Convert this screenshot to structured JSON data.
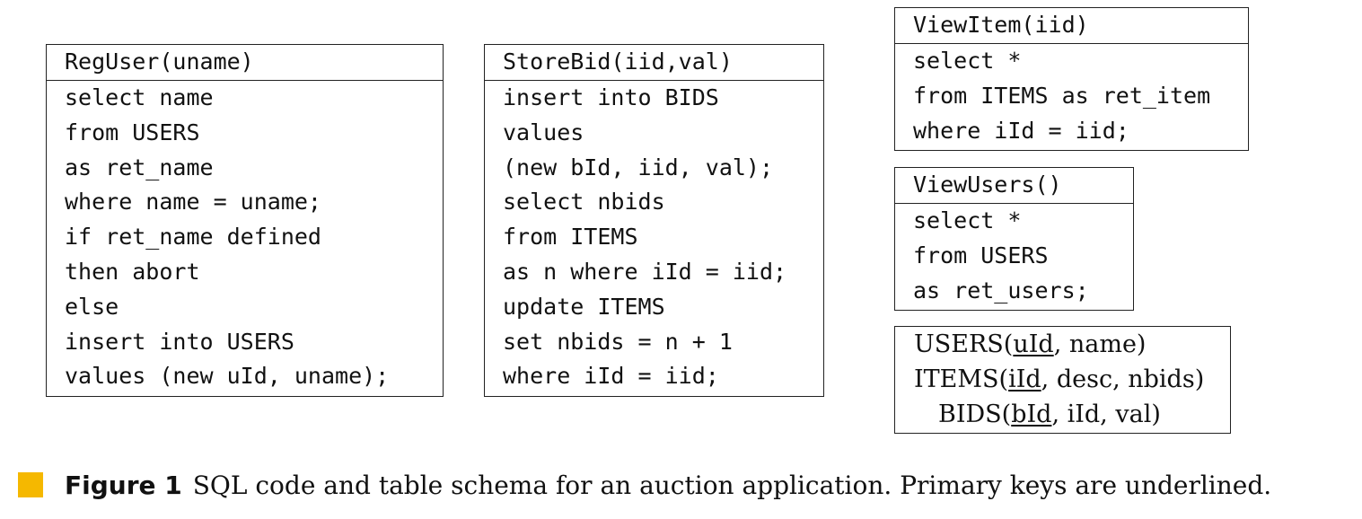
{
  "reg_user": {
    "header": "RegUser(uname)",
    "lines": [
      "select name",
      "from USERS",
      "as ret_name",
      "where name = uname;",
      "if ret_name defined",
      "then abort",
      "else",
      "insert into USERS",
      "values (new uId, uname);"
    ]
  },
  "store_bid": {
    "header": "StoreBid(iid,val)",
    "lines": [
      "insert into BIDS",
      "values",
      "(new bId, iid, val);",
      "select nbids",
      "from ITEMS",
      "as n where iId = iid;",
      "update ITEMS",
      "set nbids = n + 1",
      "where iId = iid;"
    ]
  },
  "view_item": {
    "header": "ViewItem(iid)",
    "lines": [
      "select *",
      "from ITEMS as ret_item",
      "where iId = iid;"
    ]
  },
  "view_users": {
    "header": "ViewUsers()",
    "lines": [
      "select *",
      "from USERS",
      "as ret_users;"
    ]
  },
  "schema": {
    "users": {
      "table": "USERS",
      "key": "uId",
      "rest": ", name)"
    },
    "items": {
      "table": "ITEMS",
      "key": "iId",
      "rest": ", desc, nbids)"
    },
    "bids": {
      "table": "BIDS",
      "key": "bId",
      "rest": ", iId, val)"
    }
  },
  "caption": {
    "label": "Figure 1",
    "text": "SQL code and table schema for an auction application. Primary keys are underlined."
  },
  "colors": {
    "marker": "#f5b800",
    "border": "#222222"
  }
}
